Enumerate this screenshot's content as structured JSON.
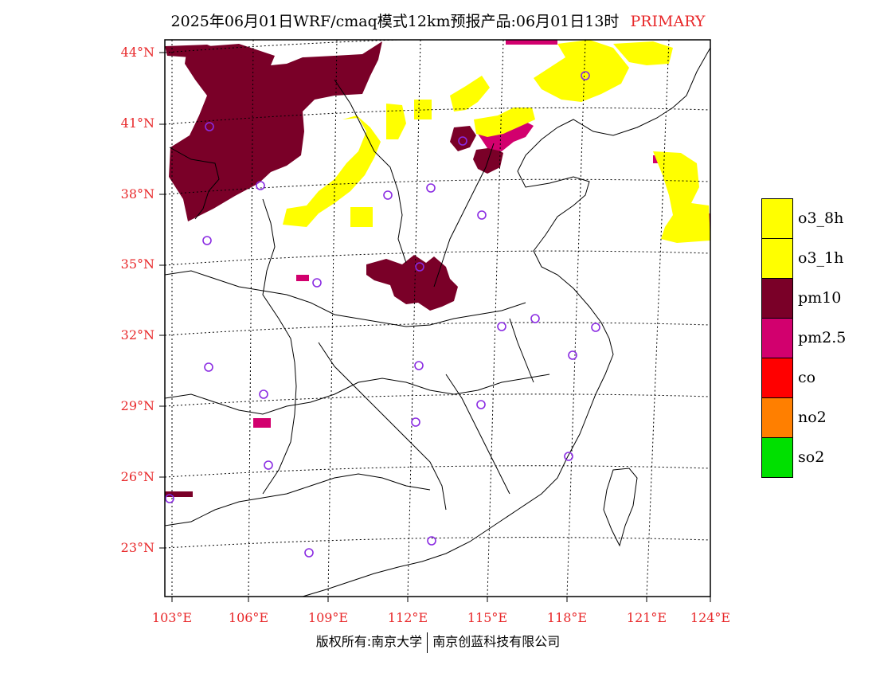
{
  "title": {
    "main": "2025年06月01日WRF/cmaq模式12km预报产品:06月01日13时",
    "tag": "PRIMARY"
  },
  "axes": {
    "latitudes": [
      "44°N",
      "41°N",
      "38°N",
      "35°N",
      "32°N",
      "29°N",
      "26°N",
      "23°N"
    ],
    "longitudes": [
      "103°E",
      "106°E",
      "109°E",
      "112°E",
      "115°E",
      "118°E",
      "121°E",
      "124°E"
    ]
  },
  "legend": [
    {
      "label": "o3_8h",
      "color": "#ffff00"
    },
    {
      "label": "o3_1h",
      "color": "#ffff00"
    },
    {
      "label": "pm10",
      "color": "#7a0028"
    },
    {
      "label": "pm2.5",
      "color": "#d2006e"
    },
    {
      "label": "co",
      "color": "#ff0000"
    },
    {
      "label": "no2",
      "color": "#ff7f00"
    },
    {
      "label": "so2",
      "color": "#00e000"
    }
  ],
  "colors": {
    "label_red": "#e8282a",
    "station_marker": "#8a2be2"
  },
  "copyright": {
    "left": "版权所有:南京大学",
    "right": "南京创蓝科技有限公司"
  }
}
